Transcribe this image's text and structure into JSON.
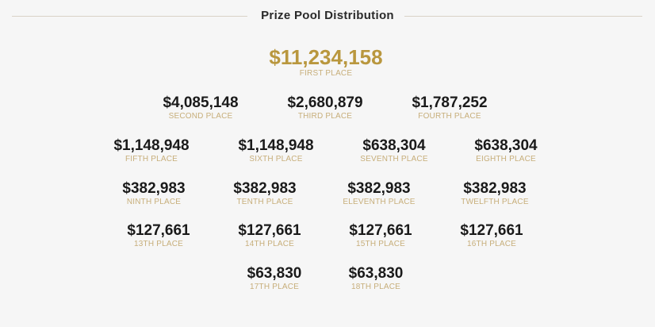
{
  "header": {
    "title": "Prize Pool Distribution"
  },
  "colors": {
    "first_place_amount": "#b9973e",
    "place_label": "#c7ae7a",
    "amount": "#1a1a1a",
    "background": "#f6f6f6",
    "divider": "#d9d3c7"
  },
  "prizes": [
    {
      "amount": "$11,234,158",
      "place": "FIRST PLACE"
    },
    {
      "amount": "$4,085,148",
      "place": "SECOND PLACE"
    },
    {
      "amount": "$2,680,879",
      "place": "THIRD PLACE"
    },
    {
      "amount": "$1,787,252",
      "place": "FOURTH PLACE"
    },
    {
      "amount": "$1,148,948",
      "place": "FIFTH PLACE"
    },
    {
      "amount": "$1,148,948",
      "place": "SIXTH PLACE"
    },
    {
      "amount": "$638,304",
      "place": "SEVENTH PLACE"
    },
    {
      "amount": "$638,304",
      "place": "EIGHTH PLACE"
    },
    {
      "amount": "$382,983",
      "place": "NINTH PLACE"
    },
    {
      "amount": "$382,983",
      "place": "TENTH PLACE"
    },
    {
      "amount": "$382,983",
      "place": "ELEVENTH PLACE"
    },
    {
      "amount": "$382,983",
      "place": "TWELFTH PLACE"
    },
    {
      "amount": "$127,661",
      "place": "13TH PLACE"
    },
    {
      "amount": "$127,661",
      "place": "14TH PLACE"
    },
    {
      "amount": "$127,661",
      "place": "15TH PLACE"
    },
    {
      "amount": "$127,661",
      "place": "16TH PLACE"
    },
    {
      "amount": "$63,830",
      "place": "17TH PLACE"
    },
    {
      "amount": "$63,830",
      "place": "18TH PLACE"
    }
  ]
}
